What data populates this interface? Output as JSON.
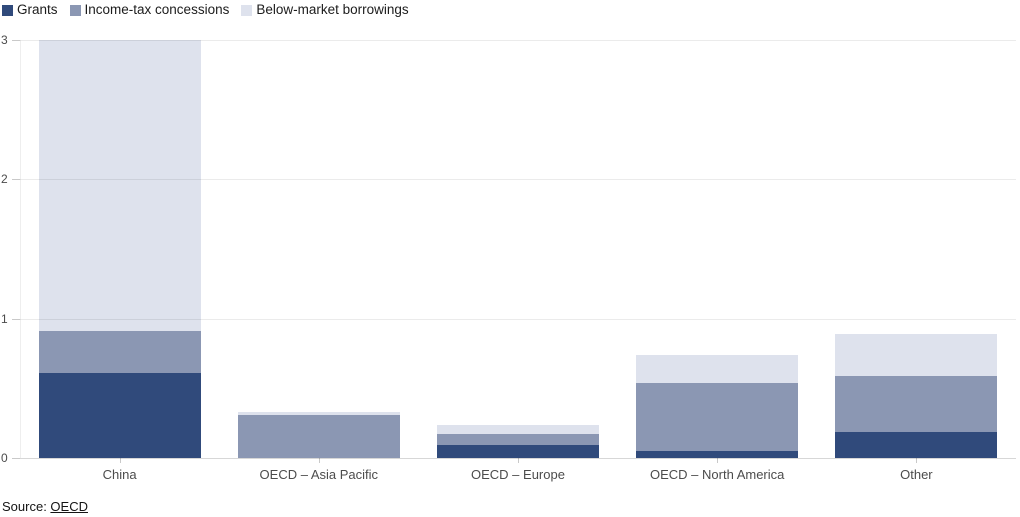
{
  "chart_data": {
    "type": "bar",
    "stacked": true,
    "title": "",
    "xlabel": "",
    "ylabel": "",
    "categories": [
      "China",
      "OECD – Asia Pacific",
      "OECD – Europe",
      "OECD – North America",
      "Other"
    ],
    "series": [
      {
        "name": "Grants",
        "color": "#304a7b",
        "values": [
          0.61,
          0.0,
          0.09,
          0.05,
          0.19
        ]
      },
      {
        "name": "Income-tax concessions",
        "color": "#8b97b3",
        "values": [
          0.3,
          0.31,
          0.08,
          0.49,
          0.4
        ]
      },
      {
        "name": "Below-market borrowings",
        "color": "#dee2ed",
        "values": [
          2.09,
          0.02,
          0.07,
          0.2,
          0.3
        ]
      }
    ],
    "ylim": [
      0,
      3
    ],
    "yticks": [
      0,
      1,
      2,
      3
    ],
    "grid": true,
    "legend_position": "top"
  },
  "source": {
    "prefix": "Source: ",
    "link_label": "OECD"
  }
}
